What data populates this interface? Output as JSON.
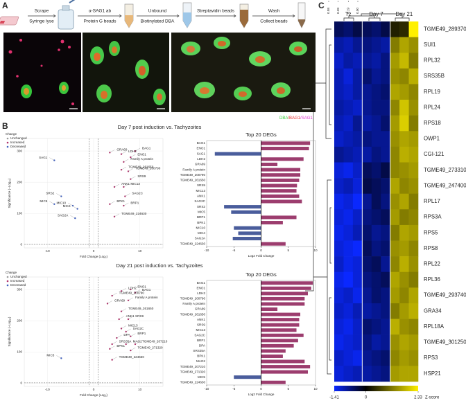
{
  "panel_labels": [
    "A",
    "B",
    "C"
  ],
  "workflow": {
    "steps": [
      {
        "top": "Scrape",
        "bottom": "Syringe lyse"
      },
      {
        "top": "α-SAG1 ab",
        "bottom": "Protein G beads"
      },
      {
        "top": "Unbound",
        "bottom": "Biotinylated DBA"
      },
      {
        "top": "Streptavidin beads"
      },
      {
        "top": "Wash",
        "bottom": "Collect beads"
      }
    ],
    "image_legend": [
      {
        "text": "DBA",
        "color": "#3fd13f"
      },
      {
        "text": "/BAG1",
        "color": "#e8302f"
      },
      {
        "text": "/SAG1",
        "color": "#e03ad0"
      }
    ]
  },
  "chart_data": [
    {
      "type": "scatter",
      "title": "Day 7 post induction vs. Tachyzoites",
      "xlabel": "Fold Change (Log₂)",
      "ylabel": "Significance (−Log₁₀)",
      "xlim": [
        -15,
        15
      ],
      "ylim": [
        -10,
        340
      ],
      "xticks": [
        -10,
        0,
        10
      ],
      "yticks": [
        0,
        100,
        200,
        300
      ],
      "cutoffs_x": [
        -1,
        1
      ],
      "cutoff_y": 1.3,
      "legend_title": "Change",
      "series": [
        {
          "name": "Unchanged",
          "color": "#9a9a9a",
          "x": [],
          "y": []
        },
        {
          "name": "Increased",
          "color": "#b0306a",
          "labels": [
            "BAG1",
            "ENO1",
            "LDH2",
            "GRA69",
            "Family A protein",
            "TGME49_261650",
            "TGME49_200790",
            "SRS9",
            "ANK1",
            "MIC13",
            "SAG2C",
            "BRP1",
            "BPK1",
            "TGME49_224630"
          ],
          "x": [
            9,
            8,
            6,
            3.5,
            6.5,
            6,
            7.5,
            8,
            4.5,
            6.5,
            6.8,
            6.5,
            3.5,
            4.5
          ],
          "y": [
            300,
            280,
            290,
            295,
            265,
            240,
            235,
            210,
            185,
            185,
            155,
            125,
            130,
            90
          ]
        },
        {
          "name": "Decreased",
          "color": "#3e5fbf",
          "labels": [
            "SAG1",
            "SRS2",
            "MIC10",
            "MIC5",
            "MIC4",
            "SAG2A"
          ],
          "x": [
            -8.5,
            -7,
            -4.5,
            -8.5,
            -3.5,
            -4
          ],
          "y": [
            270,
            155,
            125,
            130,
            115,
            85
          ]
        }
      ]
    },
    {
      "type": "bar",
      "title": "Top 20 DEGs",
      "xlabel": "Log2 Fold Change",
      "xlim": [
        -10,
        10
      ],
      "xticks": [
        -10,
        -5,
        0,
        5,
        10
      ],
      "color_up": "#9c3d6e",
      "color_down": "#4a5d9c",
      "categories": [
        "BAG1",
        "ENO1",
        "SAG1",
        "LDH2",
        "GRA69",
        "Family A protein",
        "TGME49_200790",
        "TGME49_261650",
        "SRS9",
        "MIC13",
        "ANK1",
        "SAG2C",
        "SRS2",
        "MIC5",
        "BRP1",
        "BPK1",
        "MIC10",
        "MIC4",
        "SAG2A",
        "TGME49_224630"
      ],
      "values": [
        9,
        8.8,
        -8.5,
        7.8,
        3,
        7.2,
        7.2,
        7.0,
        6.6,
        6.5,
        7.0,
        7.5,
        -6.8,
        -5.5,
        6.5,
        4,
        -5,
        -4.2,
        -5.2,
        4.5
      ]
    },
    {
      "type": "scatter",
      "title": "Day 21 post induction vs. Tachyzoites",
      "xlabel": "Fold Change (Log₂)",
      "ylabel": "Significance (−Log₁₀)",
      "xlim": [
        -15,
        15
      ],
      "ylim": [
        -10,
        340
      ],
      "xticks": [
        -10,
        0,
        10
      ],
      "yticks": [
        0,
        100,
        200,
        300
      ],
      "cutoffs_x": [
        -1,
        1
      ],
      "cutoff_y": 1.3,
      "legend_title": "Change",
      "series": [
        {
          "name": "Unchanged",
          "color": "#9a9a9a",
          "x": [],
          "y": []
        },
        {
          "name": "Increased",
          "color": "#b0306a",
          "labels": [
            "LDH2",
            "ENO1",
            "BAG1",
            "TGME49_200790",
            "Family A protein",
            "GRA69",
            "TGME49_261650",
            "ANK1",
            "SRS9",
            "MIC13",
            "SAG2C",
            "BRP1",
            "DPA",
            "SRS35A",
            "MAG2",
            "TGME49_207210",
            "BPK1",
            "TGME49_271320",
            "TGME49_224630"
          ],
          "x": [
            6,
            8,
            9,
            4,
            7.5,
            3,
            6,
            5.5,
            7.5,
            6,
            7,
            8,
            5,
            4,
            7,
            9,
            3.5,
            8,
            4
          ],
          "y": [
            295,
            300,
            290,
            280,
            265,
            255,
            230,
            205,
            205,
            175,
            165,
            150,
            145,
            125,
            125,
            125,
            110,
            105,
            75
          ]
        },
        {
          "name": "Decreased",
          "color": "#3e5fbf",
          "labels": [
            "MIC5"
          ],
          "x": [
            -7
          ],
          "y": [
            80
          ]
        }
      ]
    },
    {
      "type": "bar",
      "title": "Top 20 DEGs",
      "xlabel": "Log2 Fold Change",
      "xlim": [
        -10,
        10
      ],
      "xticks": [
        -10,
        -5,
        0,
        5,
        10
      ],
      "color_up": "#9c3d6e",
      "color_down": "#4a5d9c",
      "categories": [
        "BAG1",
        "ENO1",
        "LDH2",
        "TGME49_200790",
        "Family A protein",
        "GRA69",
        "TGME49_261650",
        "ANK1",
        "SRS9",
        "MIC13",
        "SAG2C",
        "BRP1",
        "DPA",
        "SRS35A",
        "BPK1",
        "MAG2",
        "TGME49_207210",
        "TGME49_271320",
        "MIC5",
        "TGME49_224630"
      ],
      "values": [
        9.5,
        9.2,
        8.6,
        8,
        8,
        3,
        7.2,
        7,
        7,
        6.5,
        7.8,
        6.8,
        6,
        4.5,
        4,
        8,
        9,
        8.6,
        -5,
        4.5
      ]
    },
    {
      "type": "heatmap",
      "column_groups": [
        "Tz",
        "Day 7",
        "Day 21"
      ],
      "columns_per_group": 3,
      "dendrogram_scale": [
        0.58,
        0.39,
        0.19,
        {
          "value": 0,
          "label": "0.00"
        }
      ],
      "zlim": [
        -1.41,
        2.33
      ],
      "zticks": [
        -1.41,
        0,
        2.33
      ],
      "zlabel": "Z-score",
      "rows": [
        "TGME49_289370",
        "SUI1",
        "RPL32",
        "SRS35B",
        "RPL19",
        "RPL24",
        "RPS18",
        "OWP1",
        "CGI-121",
        "TGME49_273310",
        "TGME49_247400",
        "RPL17",
        "RPS3A",
        "RPS5",
        "RPS8",
        "RPL22",
        "RPL36",
        "TGME49_293740",
        "GRA34",
        "RPL18A",
        "TGME49_301250",
        "RPS3",
        "HSP21"
      ],
      "values": [
        [
          -0.5,
          -0.6,
          -0.4,
          -0.5,
          -0.6,
          -0.4,
          0.3,
          0.4,
          2.33
        ],
        [
          -0.9,
          -1.0,
          -0.8,
          -0.7,
          -0.8,
          -0.9,
          1.2,
          1.6,
          1.4
        ],
        [
          -1.1,
          -0.9,
          -1.0,
          -0.8,
          -0.9,
          -0.7,
          1.5,
          1.8,
          1.2
        ],
        [
          -1.0,
          -1.2,
          -0.9,
          -0.6,
          -0.8,
          -0.7,
          1.4,
          1.3,
          1.7
        ],
        [
          -1.0,
          -1.1,
          -0.9,
          -0.8,
          -0.7,
          -0.6,
          1.6,
          1.5,
          1.3
        ],
        [
          -0.9,
          -1.0,
          -1.1,
          -0.8,
          -0.7,
          -0.7,
          1.3,
          1.9,
          1.4
        ],
        [
          -1.0,
          -1.1,
          -0.8,
          -0.9,
          -0.8,
          -0.6,
          1.5,
          2.0,
          1.2
        ],
        [
          -1.1,
          -1.0,
          -0.9,
          -0.7,
          -0.8,
          -0.8,
          1.4,
          1.6,
          1.5
        ],
        [
          -0.8,
          -0.9,
          -1.0,
          -0.9,
          -0.7,
          -0.8,
          1.3,
          1.7,
          1.6
        ],
        [
          -1.2,
          -1.3,
          -1.1,
          -0.5,
          -0.6,
          -0.4,
          1.3,
          1.4,
          1.5
        ],
        [
          -1.1,
          -1.0,
          -1.2,
          -0.4,
          -0.5,
          -0.6,
          1.6,
          1.3,
          1.4
        ],
        [
          -1.3,
          -1.2,
          -1.4,
          -0.8,
          -0.5,
          -0.7,
          1.4,
          1.6,
          1.2
        ],
        [
          -1.2,
          -1.3,
          -1.1,
          -0.7,
          -0.6,
          -0.5,
          1.5,
          1.2,
          1.3
        ],
        [
          -1.3,
          -1.2,
          -1.0,
          -0.6,
          -0.8,
          -0.7,
          1.2,
          1.6,
          1.5
        ],
        [
          -1.2,
          -1.3,
          -1.4,
          -0.5,
          -0.7,
          -0.6,
          1.4,
          1.5,
          1.3
        ],
        [
          -1.1,
          -1.3,
          -1.2,
          -0.6,
          -0.5,
          -0.8,
          1.3,
          1.7,
          1.4
        ],
        [
          -1.3,
          -1.41,
          -1.2,
          -0.7,
          -0.6,
          -0.5,
          1.6,
          1.4,
          1.2
        ],
        [
          -1.2,
          -1.1,
          -1.3,
          -0.8,
          -0.6,
          -0.7,
          1.5,
          1.3,
          1.6
        ],
        [
          -1.1,
          -1.2,
          -1.0,
          -0.9,
          -0.8,
          -0.7,
          1.2,
          1.5,
          1.7
        ],
        [
          -1.2,
          -1.3,
          -1.1,
          -0.6,
          -0.7,
          -0.8,
          1.7,
          1.4,
          1.3
        ],
        [
          -1.3,
          -1.2,
          -1.1,
          -0.7,
          -0.9,
          -0.8,
          1.4,
          1.6,
          1.5
        ],
        [
          -1.1,
          -1.2,
          -1.3,
          -0.8,
          -0.7,
          -0.6,
          1.3,
          1.5,
          1.4
        ],
        [
          -1.2,
          -1.1,
          -1.0,
          -0.9,
          -0.8,
          -0.7,
          1.5,
          1.6,
          1.6
        ]
      ]
    }
  ]
}
